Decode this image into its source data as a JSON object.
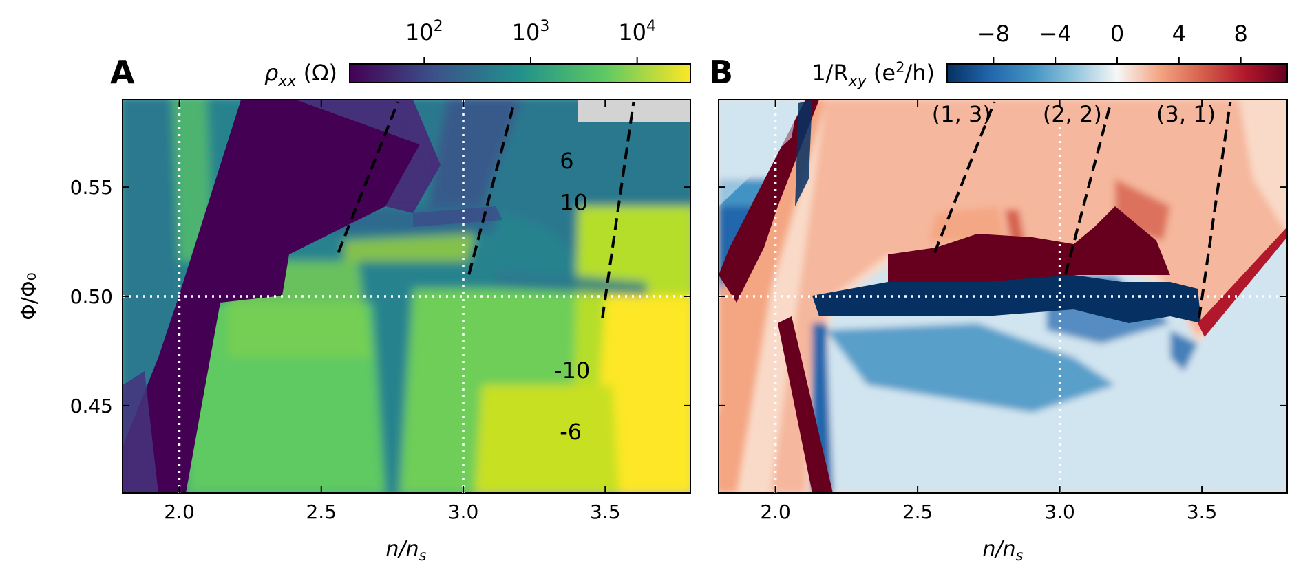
{
  "chart_data": [
    {
      "type": "heatmap",
      "panel_label": "A",
      "quantity": "resistivity",
      "colorbar": {
        "label_symbol": "ρ",
        "label_sub": "xx",
        "label_unit": " (Ω)",
        "scale": "log",
        "colormap": "viridis",
        "colors": [
          "#440154",
          "#3b528b",
          "#21918c",
          "#5ec962",
          "#fde725"
        ],
        "ticks": [
          {
            "base": "10",
            "exp": "2",
            "value": 100
          },
          {
            "base": "10",
            "exp": "3",
            "value": 1000
          },
          {
            "base": "10",
            "exp": "4",
            "value": 10000
          }
        ],
        "range_log10": [
          1.3,
          4.5
        ]
      },
      "x_range": [
        1.8,
        3.8
      ],
      "y_range": [
        0.41,
        0.59
      ],
      "x_ticks": [
        "2.0",
        "2.5",
        "3.0",
        "3.5"
      ],
      "x_tick_values": [
        2.0,
        2.5,
        3.0,
        3.5
      ],
      "y_ticks": [
        "0.45",
        "0.50",
        "0.55"
      ],
      "y_tick_values": [
        0.45,
        0.5,
        0.55
      ],
      "ylabel": "Φ/Φ₀",
      "xlabel_main": "n/n",
      "xlabel_sub": "s",
      "annotations": [
        {
          "text": "6",
          "x": 3.34,
          "y": 0.5585
        },
        {
          "text": "10",
          "x": 3.34,
          "y": 0.5395
        },
        {
          "text": "-10",
          "x": 3.32,
          "y": 0.4625
        },
        {
          "text": "-6",
          "x": 3.34,
          "y": 0.4345
        }
      ],
      "dashed_lines": [
        {
          "x": [
            2.56,
            2.77
          ],
          "y": [
            0.52,
            0.589
          ]
        },
        {
          "x": [
            3.02,
            3.18
          ],
          "y": [
            0.51,
            0.589
          ]
        },
        {
          "x": [
            3.49,
            3.6
          ],
          "y": [
            0.49,
            0.589
          ]
        }
      ],
      "reference_lines": {
        "vertical": [
          2.0,
          3.0
        ],
        "horizontal": [
          0.5
        ]
      }
    },
    {
      "type": "heatmap",
      "panel_label": "B",
      "quantity": "Hall conductance",
      "colorbar": {
        "label_main": "1/R",
        "label_sub": "xy",
        "label_unit_open": " (e",
        "label_unit_exp": "2",
        "label_unit_close": "/h)",
        "scale": "linear",
        "colormap": "RdBu_r",
        "colors": [
          "#053061",
          "#2166ac",
          "#4393c3",
          "#92c5de",
          "#f7f7f7",
          "#f4a582",
          "#d6604d",
          "#b2182b",
          "#67001f"
        ],
        "ticks": [
          "−8",
          "−4",
          "0",
          "4",
          "8"
        ],
        "tick_values": [
          -8,
          -4,
          0,
          4,
          8
        ],
        "range": [
          -11,
          11
        ]
      },
      "x_range": [
        1.8,
        3.8
      ],
      "y_range": [
        0.41,
        0.59
      ],
      "x_ticks": [
        "2.0",
        "2.5",
        "3.0",
        "3.5"
      ],
      "x_tick_values": [
        2.0,
        2.5,
        3.0,
        3.5
      ],
      "y_tick_values": [
        0.45,
        0.5,
        0.55
      ],
      "xlabel_main": "n/n",
      "xlabel_sub": "s",
      "annotations": [
        {
          "text": "(1, 3)",
          "x": 2.55,
          "y": 0.58
        },
        {
          "text": "(2, 2)",
          "x": 2.94,
          "y": 0.58
        },
        {
          "text": "(3, 1)",
          "x": 3.34,
          "y": 0.58
        }
      ],
      "dashed_lines": [
        {
          "x": [
            2.56,
            2.77
          ],
          "y": [
            0.52,
            0.589
          ]
        },
        {
          "x": [
            3.02,
            3.18
          ],
          "y": [
            0.51,
            0.589
          ]
        },
        {
          "x": [
            3.49,
            3.6
          ],
          "y": [
            0.49,
            0.589
          ]
        }
      ],
      "reference_lines": {
        "vertical": [
          2.0,
          3.0
        ],
        "horizontal": [
          0.5
        ]
      }
    }
  ]
}
